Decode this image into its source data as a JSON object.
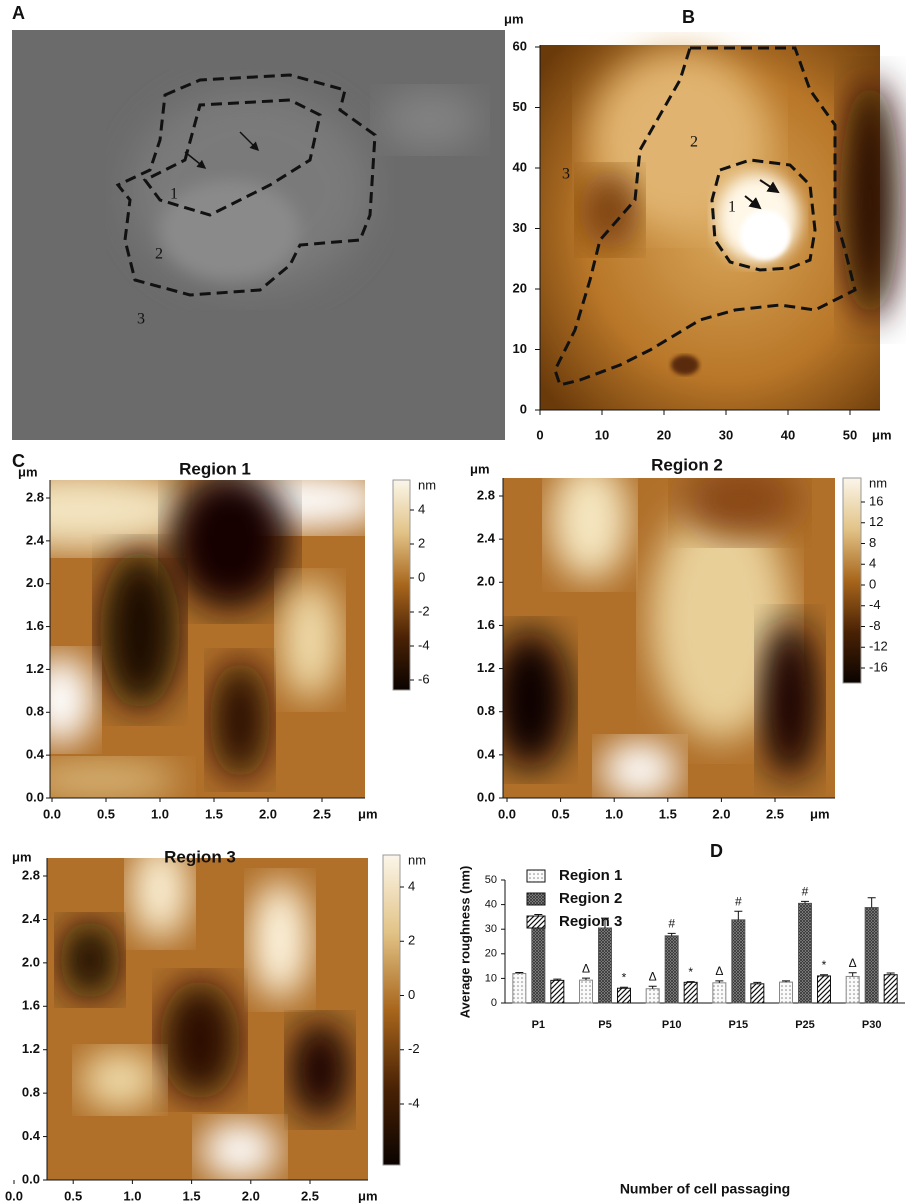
{
  "panel_a": {
    "label": "A",
    "regions": [
      "1",
      "2",
      "3"
    ]
  },
  "panel_b": {
    "label": "B",
    "y_unit": "μm",
    "x_unit": "μm",
    "yticks": [
      "0",
      "10",
      "20",
      "30",
      "40",
      "50",
      "60"
    ],
    "xticks": [
      "0",
      "10",
      "20",
      "30",
      "40",
      "50"
    ],
    "regions": [
      "1",
      "2",
      "3"
    ]
  },
  "panel_c": {
    "label": "C",
    "maps": [
      {
        "title": "Region 1",
        "y_unit": "μm",
        "x_unit": "μm",
        "yticks": [
          "0.0",
          "0.4",
          "0.8",
          "1.2",
          "1.6",
          "2.0",
          "2.4",
          "2.8"
        ],
        "xticks": [
          "0.0",
          "0.5",
          "1.0",
          "1.5",
          "2.0",
          "2.5"
        ],
        "scale_unit": "nm",
        "scale_ticks": [
          "4",
          "2",
          "0",
          "-2",
          "-4",
          "-6"
        ]
      },
      {
        "title": "Region 2",
        "y_unit": "μm",
        "x_unit": "μm",
        "yticks": [
          "0.0",
          "0.4",
          "0.8",
          "1.2",
          "1.6",
          "2.0",
          "2.4",
          "2.8"
        ],
        "xticks": [
          "0.0",
          "0.5",
          "1.0",
          "1.5",
          "2.0",
          "2.5"
        ],
        "scale_unit": "nm",
        "scale_ticks": [
          "16",
          "12",
          "8",
          "4",
          "0",
          "-4",
          "-8",
          "-12",
          "-16"
        ]
      },
      {
        "title": "Region 3",
        "y_unit": "μm",
        "x_unit": "μm",
        "yticks": [
          "0.0",
          "0.4",
          "0.8",
          "1.2",
          "1.6",
          "2.0",
          "2.4",
          "2.8"
        ],
        "xticks": [
          "0.0",
          "0.5",
          "1.0",
          "1.5",
          "2.0",
          "2.5"
        ],
        "scale_unit": "nm",
        "scale_ticks": [
          "4",
          "2",
          "0",
          "-2",
          "-4"
        ]
      }
    ]
  },
  "chart_data": {
    "type": "bar",
    "label": "D",
    "x_label": "Number of cell passaging",
    "y_label": "Average roughness (nm)",
    "categories": [
      "P1",
      "P5",
      "P10",
      "P15",
      "P25",
      "P30"
    ],
    "series": [
      {
        "name": "Region 1",
        "pattern": "dots",
        "color": "#888888",
        "values": [
          12,
          9.3,
          5.8,
          8.2,
          8.5,
          10.8
        ],
        "errors": [
          0.4,
          0.8,
          1,
          0.8,
          0.5,
          1.5
        ],
        "annotations": [
          null,
          "Δ",
          "Δ",
          "Δ",
          null,
          "Δ"
        ]
      },
      {
        "name": "Region 2",
        "pattern": "crosshatch",
        "color": "#555555",
        "values": [
          34,
          30.5,
          27.3,
          33.8,
          40.5,
          38.8
        ],
        "errors": [
          2,
          4,
          1,
          3.5,
          0.8,
          4
        ],
        "annotations": [
          null,
          null,
          "#",
          "#",
          "#",
          null
        ]
      },
      {
        "name": "Region 3",
        "pattern": "hatch",
        "color": "#111111",
        "values": [
          9.2,
          6,
          8.4,
          7.8,
          11,
          11.5
        ],
        "errors": [
          0.5,
          0.4,
          0.3,
          0.6,
          0.5,
          0.7
        ],
        "annotations": [
          null,
          "*",
          "*",
          null,
          "*",
          null
        ]
      }
    ],
    "ylim": [
      0,
      50
    ],
    "yticks": [
      0,
      10,
      20,
      30,
      40,
      50
    ],
    "legend": "top-left"
  }
}
